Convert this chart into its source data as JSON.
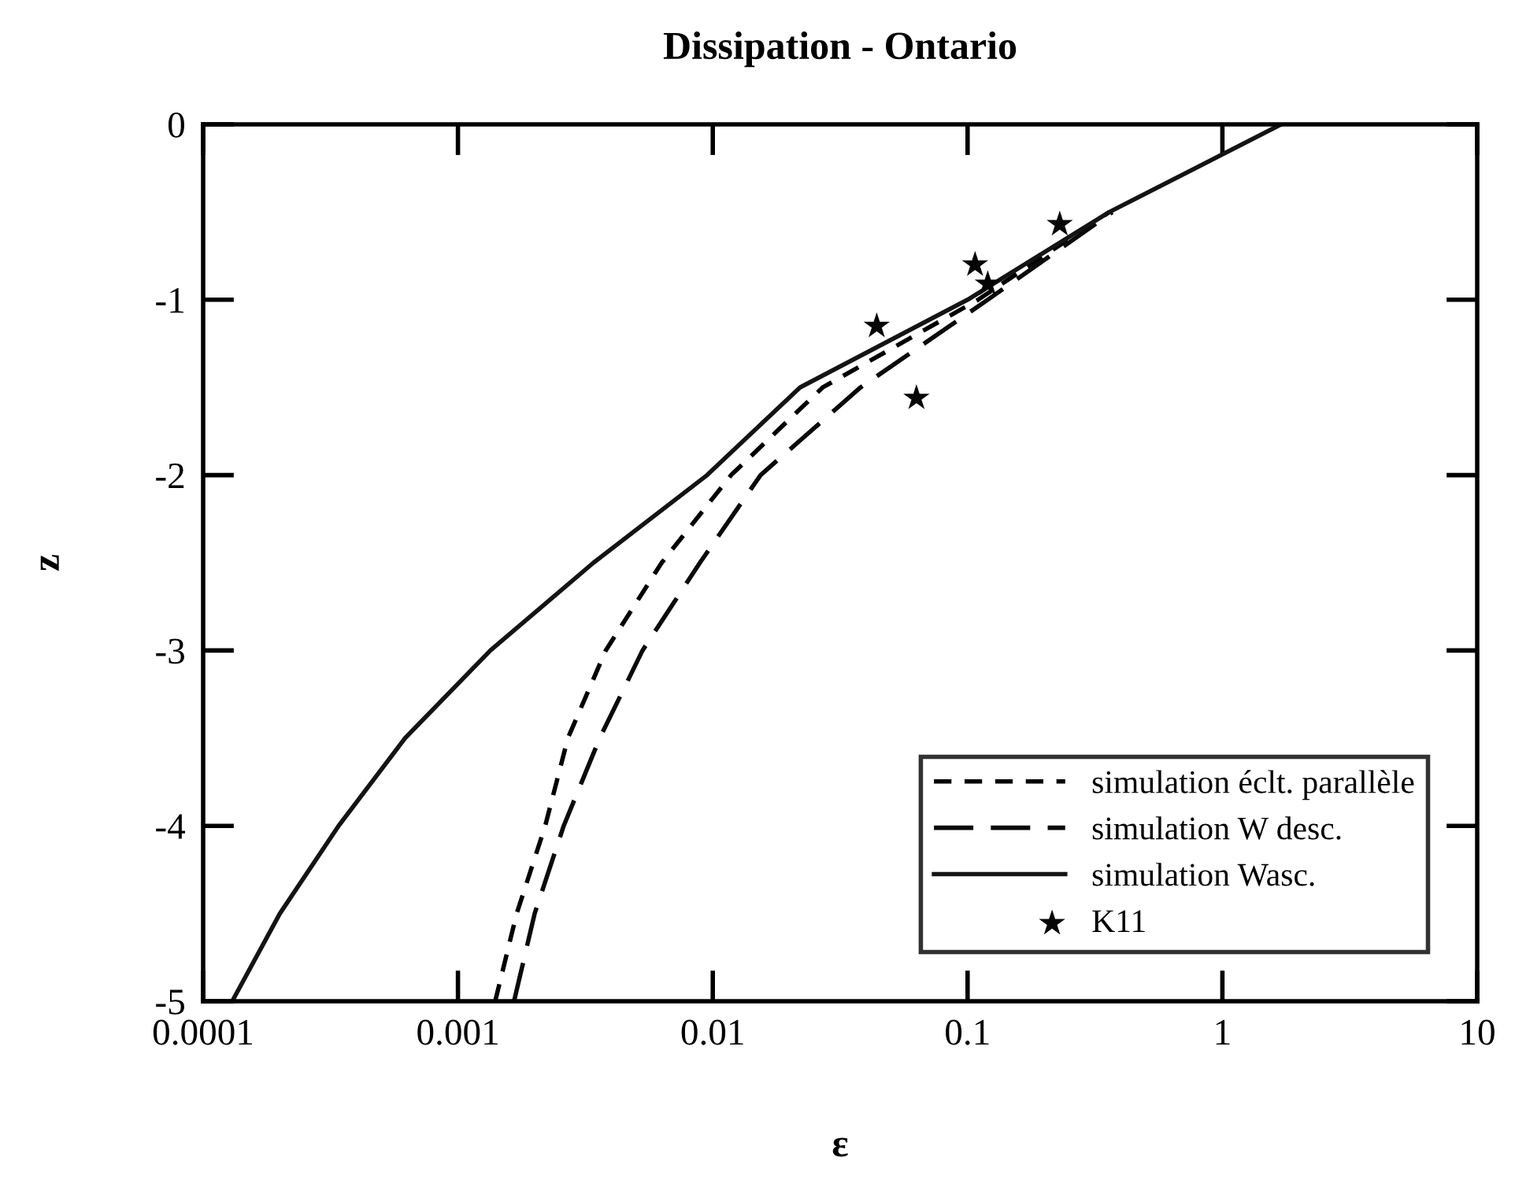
{
  "chart_data": {
    "type": "line",
    "title": "Dissipation - Ontario",
    "xlabel": "ε",
    "ylabel": "z",
    "log": "x",
    "xlim": [
      0.0001,
      10
    ],
    "xticks": [
      {
        "value": 0.0001,
        "label": "0.0001"
      },
      {
        "value": 0.001,
        "label": "0.001"
      },
      {
        "value": 0.01,
        "label": "0.01"
      },
      {
        "value": 0.1,
        "label": "0.1"
      },
      1,
      10
    ],
    "ylim": [
      -5,
      0
    ],
    "yticks": [
      -5,
      -4,
      -3,
      -2,
      -1,
      0
    ],
    "grid": false,
    "legend": "bottom right",
    "series": [
      {
        "name": "simulation éclt. parallèle",
        "color": "#000000",
        "line_style": "dashed",
        "marker": "none",
        "x": [
          0.0014,
          0.0017,
          0.0022,
          0.0027,
          0.0038,
          0.0063,
          0.0118,
          0.027,
          0.11,
          0.36
        ],
        "values": [
          -5,
          -4.5,
          -4,
          -3.5,
          -3,
          -2.5,
          -2,
          -1.5,
          -1,
          -0.5
        ]
      },
      {
        "name": "simulation W desc.",
        "color": "#0a0a0a",
        "line_style": "dashed",
        "marker": "none",
        "x": [
          0.00166,
          0.002,
          0.0026,
          0.0036,
          0.0053,
          0.0089,
          0.0154,
          0.038,
          0.12,
          0.37
        ],
        "values": [
          -5,
          -4.5,
          -4,
          -3.5,
          -3,
          -2.5,
          -2,
          -1.5,
          -1,
          -0.5
        ]
      },
      {
        "name": "simulation Wasc.",
        "color": "#141414",
        "line_style": "solid",
        "marker": "none",
        "x": [
          0.00013,
          0.0002,
          0.00034,
          0.00062,
          0.00134,
          0.0034,
          0.0095,
          0.022,
          0.1,
          0.36,
          1.7
        ],
        "values": [
          -5,
          -4.5,
          -4,
          -3.5,
          -3,
          -2.5,
          -2,
          -1.5,
          -1,
          -0.5,
          0
        ]
      },
      {
        "name": "K11",
        "type": "scatter",
        "color": "#050505",
        "marker": "star",
        "x": [
          0.23,
          0.107,
          0.12,
          0.044,
          0.063
        ],
        "values": [
          -0.57,
          -0.8,
          -0.91,
          -1.15,
          -1.56
        ]
      }
    ]
  }
}
